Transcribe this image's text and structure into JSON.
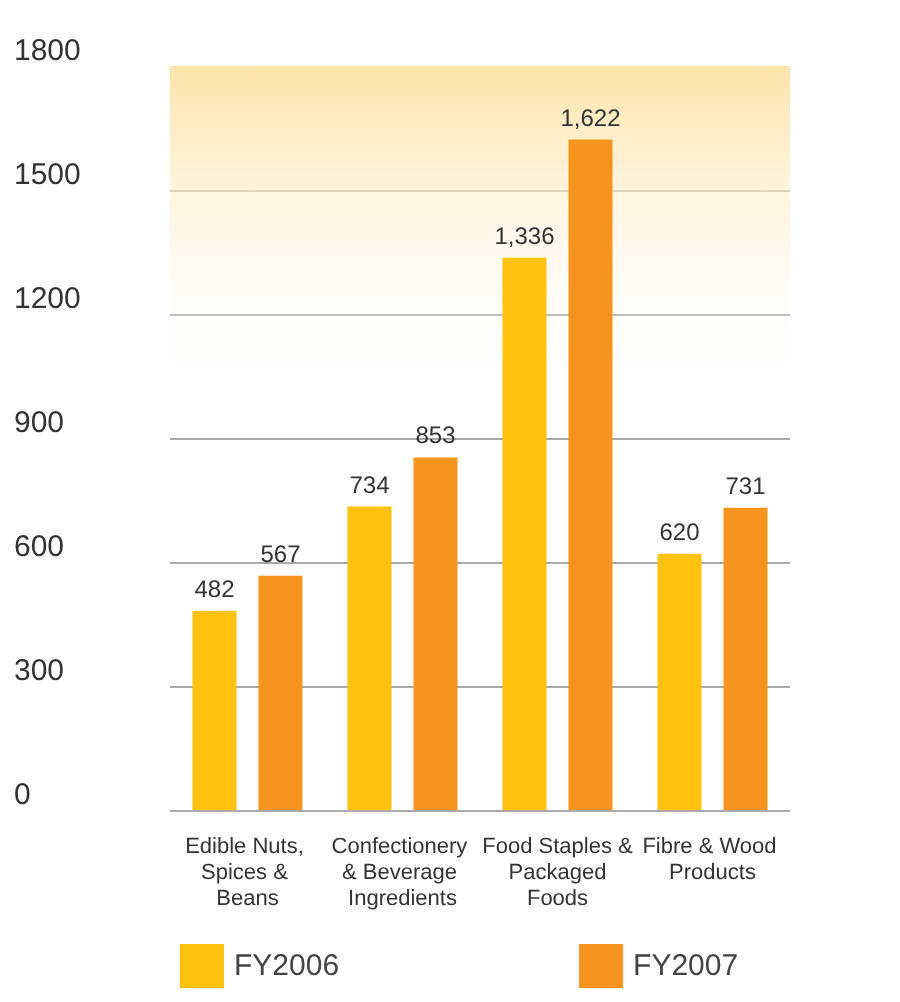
{
  "chart_data": {
    "type": "bar",
    "categories": [
      "Edible Nuts, Spices & Beans",
      "Confectionery & Beverage Ingredients",
      "Food Staples & Packaged Foods",
      "Fibre & Wood Products"
    ],
    "series": [
      {
        "name": "FY2006",
        "color": "#ffc20e",
        "values": [
          482,
          734,
          1336,
          620
        ],
        "value_labels": [
          "482",
          "734",
          "1,336",
          "620"
        ]
      },
      {
        "name": "FY2007",
        "color": "#f7941d",
        "values": [
          567,
          853,
          1622,
          731
        ],
        "value_labels": [
          "567",
          "853",
          "1,622",
          "731"
        ]
      }
    ],
    "ylim": [
      0,
      1800
    ],
    "yticks": [
      0,
      300,
      600,
      900,
      1200,
      1500,
      1800
    ],
    "bands": [
      {
        "axis": "y",
        "from": 1000,
        "to": 1800,
        "color": "#fde3a7"
      }
    ],
    "grid": "y",
    "legend": "bottom"
  }
}
